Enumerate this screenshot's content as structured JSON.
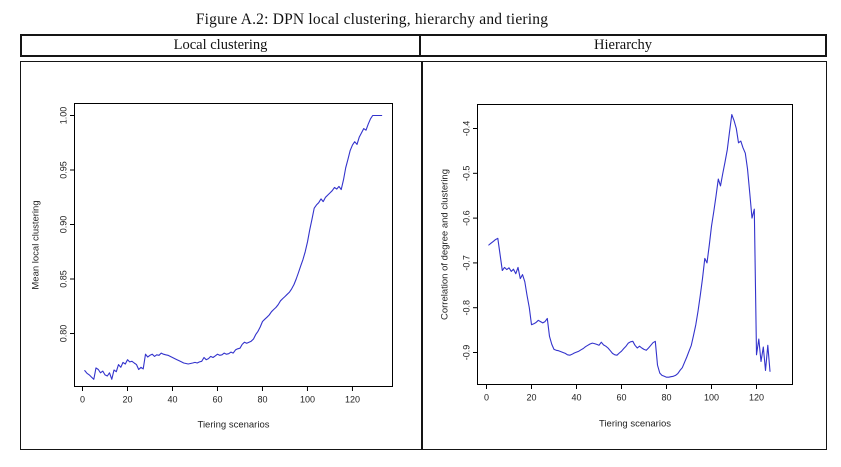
{
  "figure": {
    "title": "Figure A.2: DPN local clustering, hierarchy and tiering"
  },
  "header": {
    "left": "Local clustering",
    "right": "Hierarchy"
  },
  "colors": {
    "line": "#3333cc",
    "axis": "#000000",
    "text": "#222222",
    "border": "#151515"
  },
  "chart_data": [
    {
      "type": "line",
      "name": "local-clustering",
      "title": "Local clustering",
      "xlabel": "Tiering scenarios",
      "ylabel": "Mean local clustering",
      "legend": "none",
      "grid": false,
      "xticks": [
        0,
        20,
        40,
        60,
        80,
        100,
        120
      ],
      "yticks": [
        0.8,
        0.85,
        0.9,
        0.95,
        1.0
      ],
      "ytick_labels": [
        "0.80",
        "0.85",
        "0.90",
        "0.95",
        "1.00"
      ],
      "xlim": [
        -3.56,
        137.8
      ],
      "ylim": [
        0.7514,
        1.011
      ],
      "x_from": 1,
      "x_step": 1,
      "values": [
        0.766,
        0.7635,
        0.762,
        0.76,
        0.758,
        0.7685,
        0.767,
        0.764,
        0.7655,
        0.762,
        0.761,
        0.764,
        0.758,
        0.7665,
        0.765,
        0.7715,
        0.769,
        0.7735,
        0.772,
        0.776,
        0.774,
        0.7745,
        0.773,
        0.7715,
        0.767,
        0.769,
        0.7675,
        0.781,
        0.7785,
        0.78,
        0.781,
        0.779,
        0.7805,
        0.78,
        0.782,
        0.781,
        0.7805,
        0.78,
        0.779,
        0.778,
        0.777,
        0.776,
        0.775,
        0.774,
        0.773,
        0.7725,
        0.772,
        0.7725,
        0.773,
        0.7735,
        0.773,
        0.774,
        0.7745,
        0.778,
        0.776,
        0.777,
        0.779,
        0.778,
        0.7795,
        0.781,
        0.78,
        0.7805,
        0.782,
        0.781,
        0.7815,
        0.783,
        0.782,
        0.785,
        0.786,
        0.7865,
        0.79,
        0.792,
        0.791,
        0.792,
        0.793,
        0.795,
        0.799,
        0.802,
        0.806,
        0.811,
        0.813,
        0.815,
        0.817,
        0.82,
        0.822,
        0.824,
        0.8265,
        0.83,
        0.832,
        0.834,
        0.836,
        0.838,
        0.841,
        0.845,
        0.85,
        0.856,
        0.862,
        0.868,
        0.875,
        0.884,
        0.895,
        0.905,
        0.915,
        0.918,
        0.92,
        0.9235,
        0.921,
        0.925,
        0.927,
        0.929,
        0.931,
        0.934,
        0.9325,
        0.935,
        0.932,
        0.941,
        0.952,
        0.96,
        0.968,
        0.973,
        0.976,
        0.9735,
        0.98,
        0.984,
        0.988,
        0.9865,
        0.992,
        0.997,
        1.0,
        1.0,
        1.0,
        1.0,
        1.0
      ]
    },
    {
      "type": "line",
      "name": "hierarchy",
      "title": "Hierarchy",
      "xlabel": "Tiering scenarios",
      "ylabel": "Correlation of degree and clustering",
      "legend": "none",
      "grid": false,
      "xticks": [
        0,
        20,
        40,
        60,
        80,
        100,
        120
      ],
      "yticks": [
        -0.9,
        -0.8,
        -0.7,
        -0.6,
        -0.5,
        -0.4
      ],
      "ytick_labels": [
        "-0.9",
        "-0.8",
        "-0.7",
        "-0.6",
        "-0.5",
        "-0.4"
      ],
      "xlim": [
        -4,
        136
      ],
      "ylim": [
        -0.9714,
        -0.3464
      ],
      "x_from": 1,
      "x_step": 1,
      "values": [
        -0.66,
        -0.656,
        -0.652,
        -0.648,
        -0.645,
        -0.68,
        -0.717,
        -0.71,
        -0.715,
        -0.711,
        -0.719,
        -0.714,
        -0.724,
        -0.71,
        -0.735,
        -0.726,
        -0.742,
        -0.772,
        -0.8,
        -0.838,
        -0.836,
        -0.833,
        -0.828,
        -0.831,
        -0.834,
        -0.831,
        -0.824,
        -0.864,
        -0.882,
        -0.893,
        -0.895,
        -0.896,
        -0.898,
        -0.9,
        -0.902,
        -0.905,
        -0.906,
        -0.904,
        -0.901,
        -0.899,
        -0.897,
        -0.894,
        -0.891,
        -0.887,
        -0.884,
        -0.881,
        -0.879,
        -0.88,
        -0.882,
        -0.884,
        -0.877,
        -0.883,
        -0.886,
        -0.89,
        -0.896,
        -0.902,
        -0.905,
        -0.906,
        -0.901,
        -0.897,
        -0.891,
        -0.886,
        -0.879,
        -0.876,
        -0.875,
        -0.884,
        -0.89,
        -0.886,
        -0.89,
        -0.893,
        -0.895,
        -0.89,
        -0.884,
        -0.878,
        -0.875,
        -0.928,
        -0.946,
        -0.951,
        -0.953,
        -0.955,
        -0.955,
        -0.954,
        -0.953,
        -0.951,
        -0.947,
        -0.94,
        -0.934,
        -0.922,
        -0.91,
        -0.897,
        -0.884,
        -0.862,
        -0.838,
        -0.808,
        -0.772,
        -0.735,
        -0.69,
        -0.7,
        -0.66,
        -0.618,
        -0.585,
        -0.551,
        -0.513,
        -0.528,
        -0.5,
        -0.475,
        -0.447,
        -0.408,
        -0.369,
        -0.382,
        -0.4,
        -0.432,
        -0.428,
        -0.443,
        -0.455,
        -0.49,
        -0.545,
        -0.6,
        -0.58,
        -0.905,
        -0.87,
        -0.92,
        -0.888,
        -0.94,
        -0.884,
        -0.942
      ]
    }
  ]
}
